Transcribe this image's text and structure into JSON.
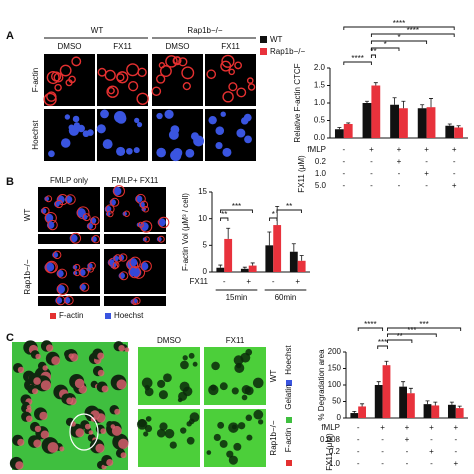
{
  "figure": {
    "panel_a": {
      "label": "A",
      "group_headers": [
        "WT",
        "Rap1b−/−"
      ],
      "column_headers": [
        "DMSO",
        "FX11",
        "DMSO",
        "FX11"
      ],
      "row_labels": [
        "F-actin",
        "Hoechst"
      ]
    },
    "panel_b": {
      "label": "B",
      "column_headers": [
        "FMLP only",
        "FMLP+ FX11"
      ],
      "row_labels": [
        "WT",
        "Rap1b−/−"
      ],
      "legend": [
        "F-actin",
        "Hoechst"
      ]
    },
    "panel_c": {
      "label": "C",
      "column_headers": [
        "DMSO",
        "FX11"
      ],
      "row_labels": [
        "WT",
        "Rap1b−/−"
      ],
      "legend": [
        "Hoechst",
        "Gelatin",
        "F-actin"
      ]
    }
  },
  "chart_data": [
    {
      "type": "bar",
      "y_label": "Relative F-actin CTCF",
      "ylim": [
        0,
        2
      ],
      "yticks": [
        {
          "value": 0,
          "label": "0.0"
        },
        0.5,
        {
          "value": 1,
          "label": "1.0"
        },
        1.5,
        {
          "value": 2,
          "label": "2.0"
        }
      ],
      "legend": true,
      "categories": [
        null,
        null,
        null,
        null,
        null
      ],
      "series": [
        {
          "name": "WT",
          "color": "#111111",
          "values": [
            0.25,
            1.0,
            0.95,
            0.85,
            0.35
          ],
          "errors": [
            0.05,
            0.05,
            0.2,
            0.1,
            0.05
          ]
        },
        {
          "name": "Rap1b−/−",
          "color": "#e8323c",
          "values": [
            0.4,
            1.5,
            0.85,
            0.88,
            0.3
          ],
          "errors": [
            0.03,
            0.08,
            0.2,
            0.25,
            0.05
          ]
        }
      ],
      "x_table_title": "FX11 (μM)",
      "x_table": [
        {
          "label": "fMLP",
          "cells": [
            "-",
            "+",
            "+",
            "+",
            "+"
          ]
        },
        {
          "label": "0.2",
          "cells": [
            "-",
            "-",
            "+",
            "-",
            "-"
          ]
        },
        {
          "label": "1.0",
          "cells": [
            "-",
            "-",
            "-",
            "+",
            "-"
          ]
        },
        {
          "label": "5.0",
          "cells": [
            "-",
            "-",
            "-",
            "-",
            "+"
          ]
        }
      ],
      "annotations": [
        "****",
        "**",
        "*",
        "*",
        "****",
        "****"
      ]
    },
    {
      "type": "bar",
      "y_label": "F-actin Vol (μM³ / cell)",
      "ylim": [
        0,
        15
      ],
      "yticks": [
        0,
        5,
        10,
        15
      ],
      "categories": [
        null,
        null,
        null,
        null
      ],
      "series": [
        {
          "name": "WT",
          "color": "#111111",
          "values": [
            0.8,
            0.6,
            5,
            3.8
          ],
          "errors": [
            0.5,
            0.3,
            2.5,
            1.5
          ]
        },
        {
          "name": "Rap1b−/−",
          "color": "#e8323c",
          "values": [
            6.2,
            1.2,
            8.8,
            2.1
          ],
          "errors": [
            2,
            0.5,
            3.5,
            1
          ]
        }
      ],
      "x_table": [
        {
          "label": "FX11",
          "cells": [
            "-",
            "+",
            "-",
            "+"
          ]
        }
      ],
      "groups": [
        "15min",
        "60min"
      ],
      "annotations": [
        "**",
        "***",
        "*",
        "**"
      ]
    },
    {
      "type": "bar",
      "y_label": "% Degradation area",
      "ylim": [
        0,
        200
      ],
      "yticks": [
        0,
        50,
        100,
        150,
        200
      ],
      "categories": [
        null,
        null,
        null,
        null,
        null
      ],
      "series": [
        {
          "name": "WT",
          "color": "#111111",
          "values": [
            15,
            100,
            95,
            42,
            40
          ],
          "errors": [
            5,
            10,
            15,
            10,
            8
          ]
        },
        {
          "name": "Rap1b−/−",
          "color": "#e8323c",
          "values": [
            35,
            160,
            75,
            38,
            30
          ],
          "errors": [
            8,
            12,
            15,
            10,
            6
          ]
        }
      ],
      "x_table_title": "FX11 (μM)",
      "x_table": [
        {
          "label": "fMLP",
          "cells": [
            "-",
            "+",
            "+",
            "+",
            "+"
          ]
        },
        {
          "label": "0.008",
          "cells": [
            "-",
            "-",
            "+",
            "-",
            "-"
          ]
        },
        {
          "label": "0.2",
          "cells": [
            "-",
            "-",
            "-",
            "+",
            "-"
          ]
        },
        {
          "label": "1.0",
          "cells": [
            "-",
            "-",
            "-",
            "-",
            "+"
          ]
        }
      ],
      "annotations": [
        "****",
        "***",
        "**",
        "***",
        "***"
      ]
    }
  ]
}
